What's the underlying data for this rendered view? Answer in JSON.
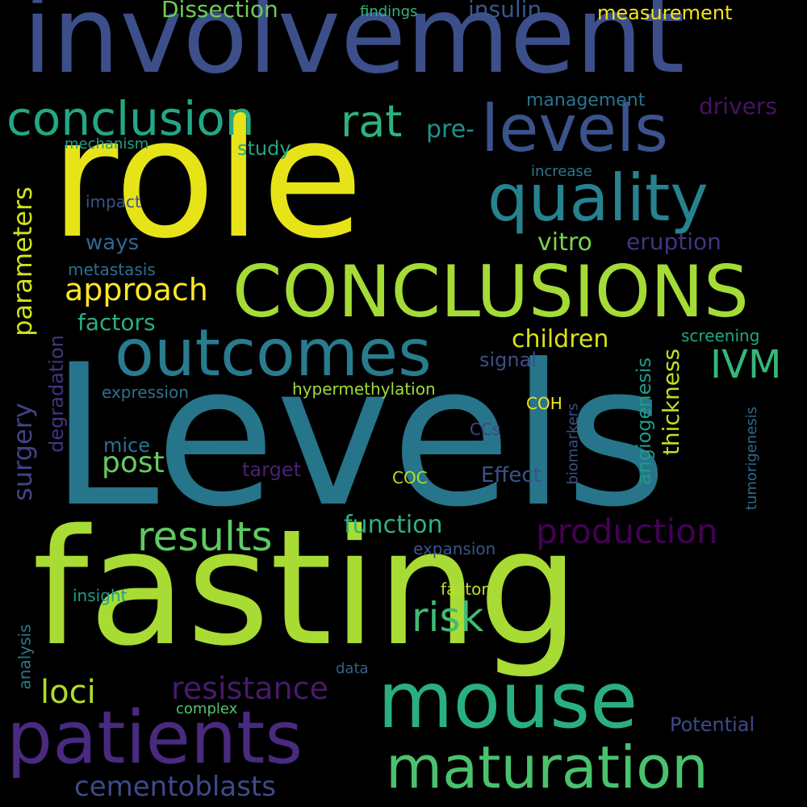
{
  "wordcloud": {
    "words": {
      "levels_cap": {
        "text": "Levels",
        "color": "#26758a"
      },
      "fasting": {
        "text": "fasting",
        "color": "#a8db34"
      },
      "role": {
        "text": "role",
        "color": "#e6e419"
      },
      "involvement": {
        "text": "involvement",
        "color": "#3c4f8a"
      },
      "conclusions_caps": {
        "text": "CONCLUSIONS",
        "color": "#a5db36"
      },
      "outcomes": {
        "text": "outcomes",
        "color": "#297b8e"
      },
      "mouse": {
        "text": "mouse",
        "color": "#2ab07f"
      },
      "patients": {
        "text": "patients",
        "color": "#482a7f"
      },
      "maturation": {
        "text": "maturation",
        "color": "#4ac16d"
      },
      "quality": {
        "text": "quality",
        "color": "#26828e"
      },
      "levels": {
        "text": "levels",
        "color": "#3b528b"
      },
      "conclusion": {
        "text": "conclusion",
        "color": "#22a884"
      },
      "production": {
        "text": "production",
        "color": "#440154"
      },
      "results": {
        "text": "results",
        "color": "#5ec962"
      },
      "risk": {
        "text": "risk",
        "color": "#3dbc74"
      },
      "ivm": {
        "text": "IVM",
        "color": "#35b779"
      },
      "rat": {
        "text": "rat",
        "color": "#2db27d"
      },
      "resistance": {
        "text": "resistance",
        "color": "#481a6c"
      },
      "cementoblasts": {
        "text": "cementoblasts",
        "color": "#3e4a89"
      },
      "loci": {
        "text": "loci",
        "color": "#addc30"
      },
      "approach": {
        "text": "approach",
        "color": "#fde725"
      },
      "post": {
        "text": "post",
        "color": "#65cb5e"
      },
      "parameters": {
        "text": "parameters",
        "color": "#d2e21b"
      },
      "surgery": {
        "text": "surgery",
        "color": "#414487"
      },
      "dissection": {
        "text": "Dissection",
        "color": "#6ccd5a"
      },
      "insulin": {
        "text": "insulin",
        "color": "#39568c"
      },
      "measurement": {
        "text": "measurement",
        "color": "#f1e51d"
      },
      "findings": {
        "text": "findings",
        "color": "#31b57b"
      },
      "management": {
        "text": "management",
        "color": "#2c718e"
      },
      "drivers": {
        "text": "drivers",
        "color": "#471365"
      },
      "pre": {
        "text": "pre-",
        "color": "#21918c"
      },
      "study": {
        "text": "study",
        "color": "#21a685"
      },
      "mechanism": {
        "text": "mechanism",
        "color": "#1fa187"
      },
      "increase": {
        "text": "increase",
        "color": "#287c8e"
      },
      "impact": {
        "text": "impact",
        "color": "#3a548c"
      },
      "ways": {
        "text": "ways",
        "color": "#32658e"
      },
      "vitro": {
        "text": "vitro",
        "color": "#7ad151"
      },
      "eruption": {
        "text": "eruption",
        "color": "#46327e"
      },
      "metastasis": {
        "text": "metastasis",
        "color": "#2e6f8e"
      },
      "factors": {
        "text": "factors",
        "color": "#29af7f"
      },
      "children": {
        "text": "children",
        "color": "#d8e219"
      },
      "screening": {
        "text": "screening",
        "color": "#22a785"
      },
      "signal": {
        "text": "signal",
        "color": "#3e4c8a"
      },
      "thickness": {
        "text": "thickness",
        "color": "#c2df23"
      },
      "angiogenesis": {
        "text": "angiogenesis",
        "color": "#1f9a8a"
      },
      "degradation": {
        "text": "degradation",
        "color": "#453581"
      },
      "expression": {
        "text": "expression",
        "color": "#2d708e"
      },
      "hypermethylation": {
        "text": "hypermethylation",
        "color": "#a0da39"
      },
      "coh": {
        "text": "COH",
        "color": "#f1e51d"
      },
      "biomarkers": {
        "text": "biomarkers",
        "color": "#3c4f8a"
      },
      "tumorigenesis": {
        "text": "tumorigenesis",
        "color": "#30698e"
      },
      "ccs": {
        "text": "CCs",
        "color": "#414487"
      },
      "mice": {
        "text": "mice",
        "color": "#2d708e"
      },
      "target": {
        "text": "target",
        "color": "#482173"
      },
      "coc": {
        "text": "COC",
        "color": "#b5de2b"
      },
      "effect": {
        "text": "Effect",
        "color": "#3b528b"
      },
      "function": {
        "text": "function",
        "color": "#2db27d"
      },
      "expansion": {
        "text": "expansion",
        "color": "#3a548c"
      },
      "insight": {
        "text": "insight",
        "color": "#1f9e89"
      },
      "factor": {
        "text": "factor",
        "color": "#bade28"
      },
      "analysis": {
        "text": "analysis",
        "color": "#2a788e"
      },
      "data": {
        "text": "data",
        "color": "#355f8d"
      },
      "complex": {
        "text": "complex",
        "color": "#52c569"
      },
      "potential": {
        "text": "Potential",
        "color": "#3e4a89"
      }
    }
  }
}
